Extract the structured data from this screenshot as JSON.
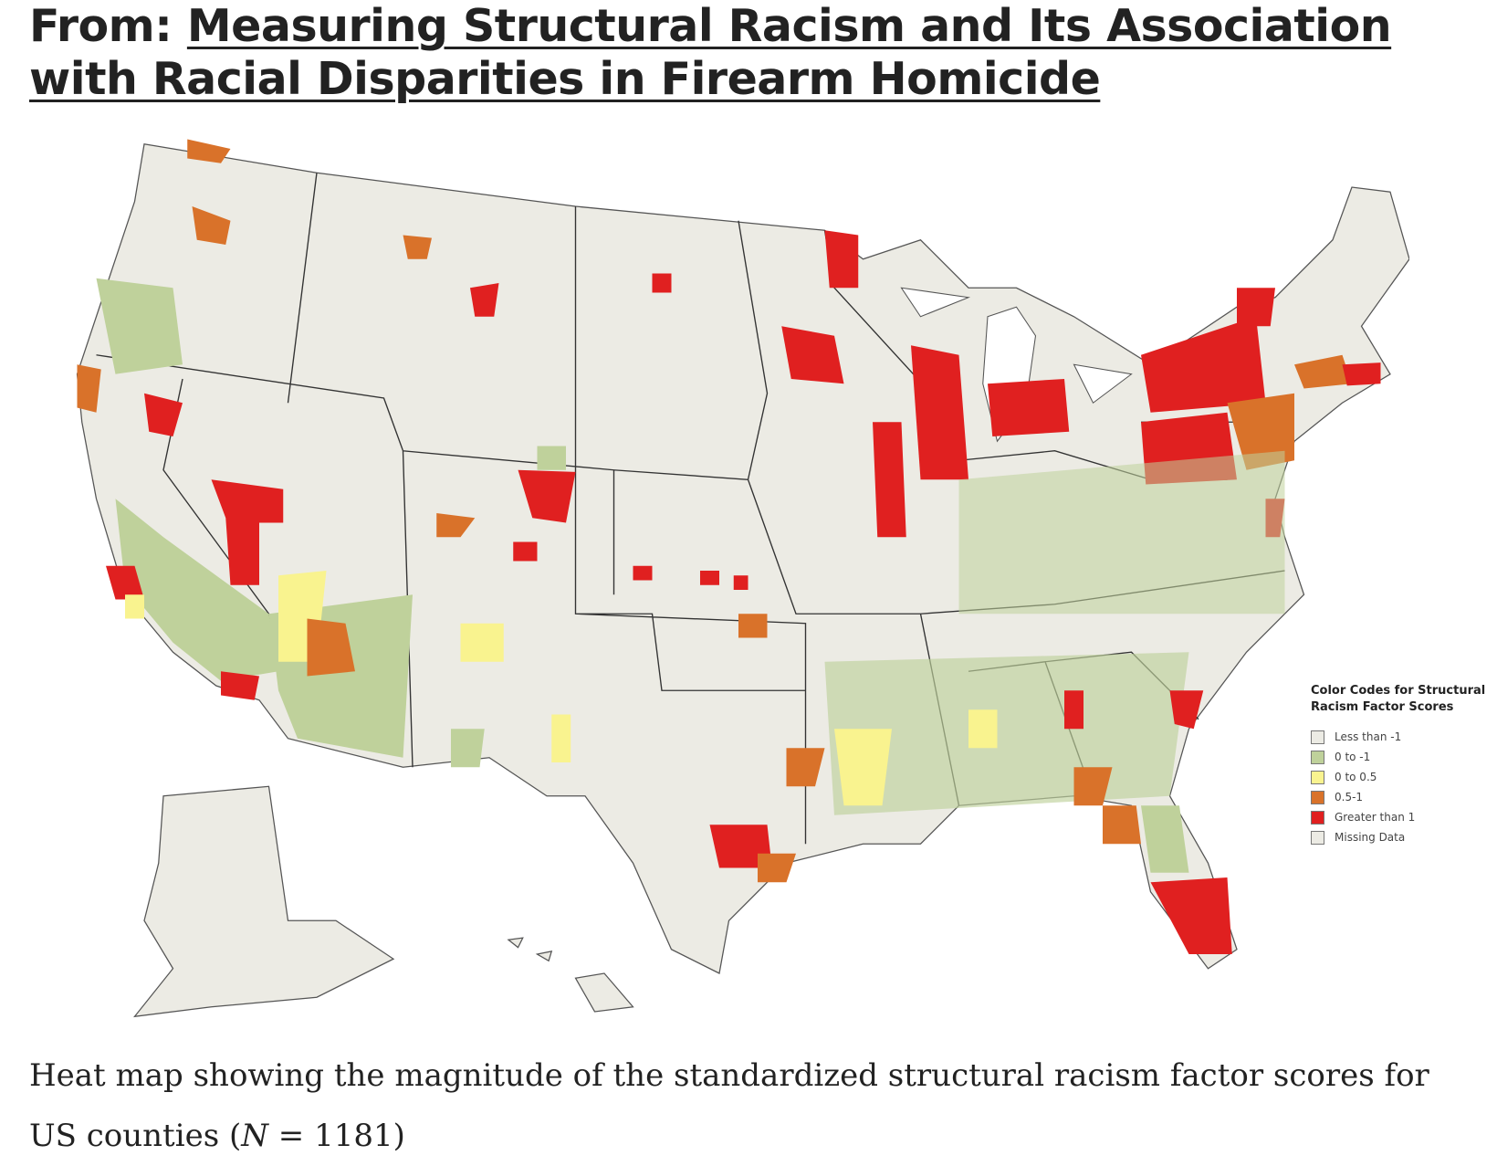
{
  "header": {
    "prefix": "From:",
    "title": "Measuring Structural Racism and Its Association with Racial Disparities in Firearm Homicide"
  },
  "legend": {
    "title": "Color Codes for Structural Racism Factor Scores",
    "items": [
      {
        "label": "Less than -1",
        "color": "#ecebe4"
      },
      {
        "label": "0 to -1",
        "color": "#bfd19b"
      },
      {
        "label": "0 to 0.5",
        "color": "#f9f38f"
      },
      {
        "label": "0.5-1",
        "color": "#d9722a"
      },
      {
        "label": "Greater than 1",
        "color": "#e02020"
      },
      {
        "label": "Missing Data",
        "color": "#ecebe4"
      }
    ]
  },
  "caption": {
    "before": "Heat map showing the magnitude of the standardized structural racism factor scores for US counties (",
    "italic": "N",
    "after": " = 1181)"
  }
}
